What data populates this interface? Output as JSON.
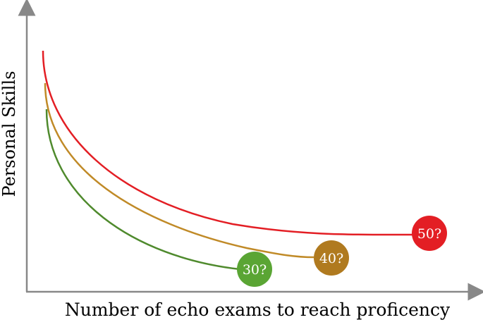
{
  "axes": {
    "x_label": "Number of echo exams to reach proficency",
    "y_label": "Personal Skills",
    "color": "#888888"
  },
  "curves": [
    {
      "label": "50?",
      "color": "#e31e24"
    },
    {
      "label": "40?",
      "color": "#c08a27"
    },
    {
      "label": "30?",
      "color": "#4f8a2d"
    }
  ],
  "markers": [
    {
      "label": "50?",
      "color": "#e31e24"
    },
    {
      "label": "40?",
      "color": "#b07a1f"
    },
    {
      "label": "30?",
      "color": "#5aa534"
    }
  ]
}
